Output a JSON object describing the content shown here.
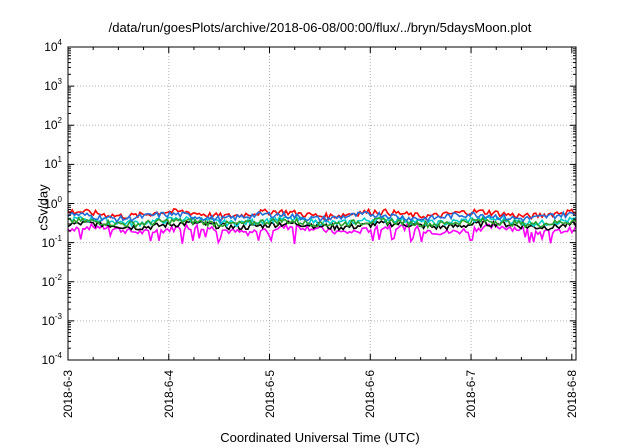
{
  "chart_data": {
    "type": "line",
    "title": "/data/run/goesPlots/archive/2018-06-08/00:00/flux/../bryn/5daysMoon.plot",
    "xlabel": "Coordinated Universal Time (UTC)",
    "ylabel": "cSv/day",
    "yscale": "log",
    "ylim": [
      0.0001,
      10000
    ],
    "yticks": [
      {
        "base": "10",
        "exp": "-4",
        "value": 0.0001
      },
      {
        "base": "10",
        "exp": "-3",
        "value": 0.001
      },
      {
        "base": "10",
        "exp": "-2",
        "value": 0.01
      },
      {
        "base": "10",
        "exp": "-1",
        "value": 0.1
      },
      {
        "base": "10",
        "exp": "0",
        "value": 1
      },
      {
        "base": "10",
        "exp": "1",
        "value": 10
      },
      {
        "base": "10",
        "exp": "2",
        "value": 100
      },
      {
        "base": "10",
        "exp": "3",
        "value": 1000
      },
      {
        "base": "10",
        "exp": "4",
        "value": 10000
      }
    ],
    "xlim": [
      "2018-6-3",
      "2018-6-8 01:00"
    ],
    "xticks": [
      "2018-6-3",
      "2018-6-4",
      "2018-6-5",
      "2018-6-6",
      "2018-6-7",
      "2018-6-8"
    ],
    "grid": true,
    "series": [
      {
        "color": "#ff00ff",
        "base": 0.22,
        "amp": 0.06,
        "dips": true
      },
      {
        "color": "#000000",
        "base": 0.28,
        "amp": 0.05,
        "dips": false
      },
      {
        "color": "#00cccc",
        "base": 0.36,
        "amp": 0.07,
        "dips": false
      },
      {
        "color": "#2ca02c",
        "base": 0.33,
        "amp": 0.05,
        "dips": false
      },
      {
        "color": "#ff0000",
        "base": 0.55,
        "amp": 0.12,
        "dips": false
      },
      {
        "color": "#1f6fd6",
        "base": 0.47,
        "amp": 0.1,
        "dips": false
      }
    ]
  }
}
